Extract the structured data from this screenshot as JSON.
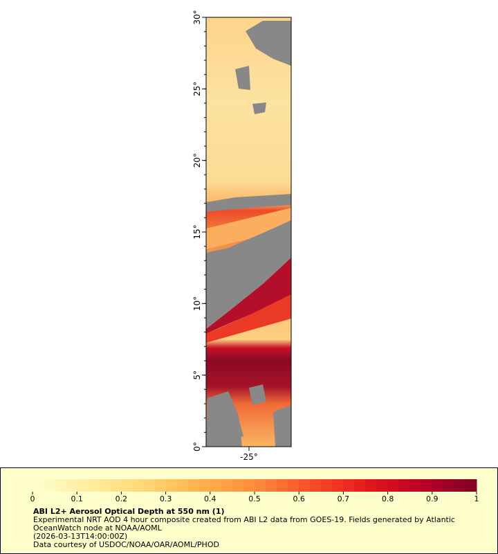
{
  "map": {
    "lat_labels": [
      "0°",
      "5°",
      "10°",
      "15°",
      "20°",
      "25°",
      "30°"
    ],
    "lon_labels": [
      "-25°"
    ]
  },
  "colorbar": {
    "range": [
      0,
      1
    ],
    "ticks": [
      0,
      0.1,
      0.2,
      0.3,
      0.4,
      0.5,
      0.6,
      0.7,
      0.8,
      0.9,
      1
    ]
  },
  "legend": {
    "title": "ABI L2+ Aerosol Optical Depth at 550 nm (1)",
    "lines": [
      "Experimental NRT AOD 4 hour composite created from ABI L2 data from GOES-19. Fields generated by Atlantic",
      "OceanWatch node at NOAA/AOML",
      "(2026-03-13T14:00:00Z)",
      "Data courtesy of USDOC/NOAA/OAR/AOML/PHOD"
    ]
  }
}
